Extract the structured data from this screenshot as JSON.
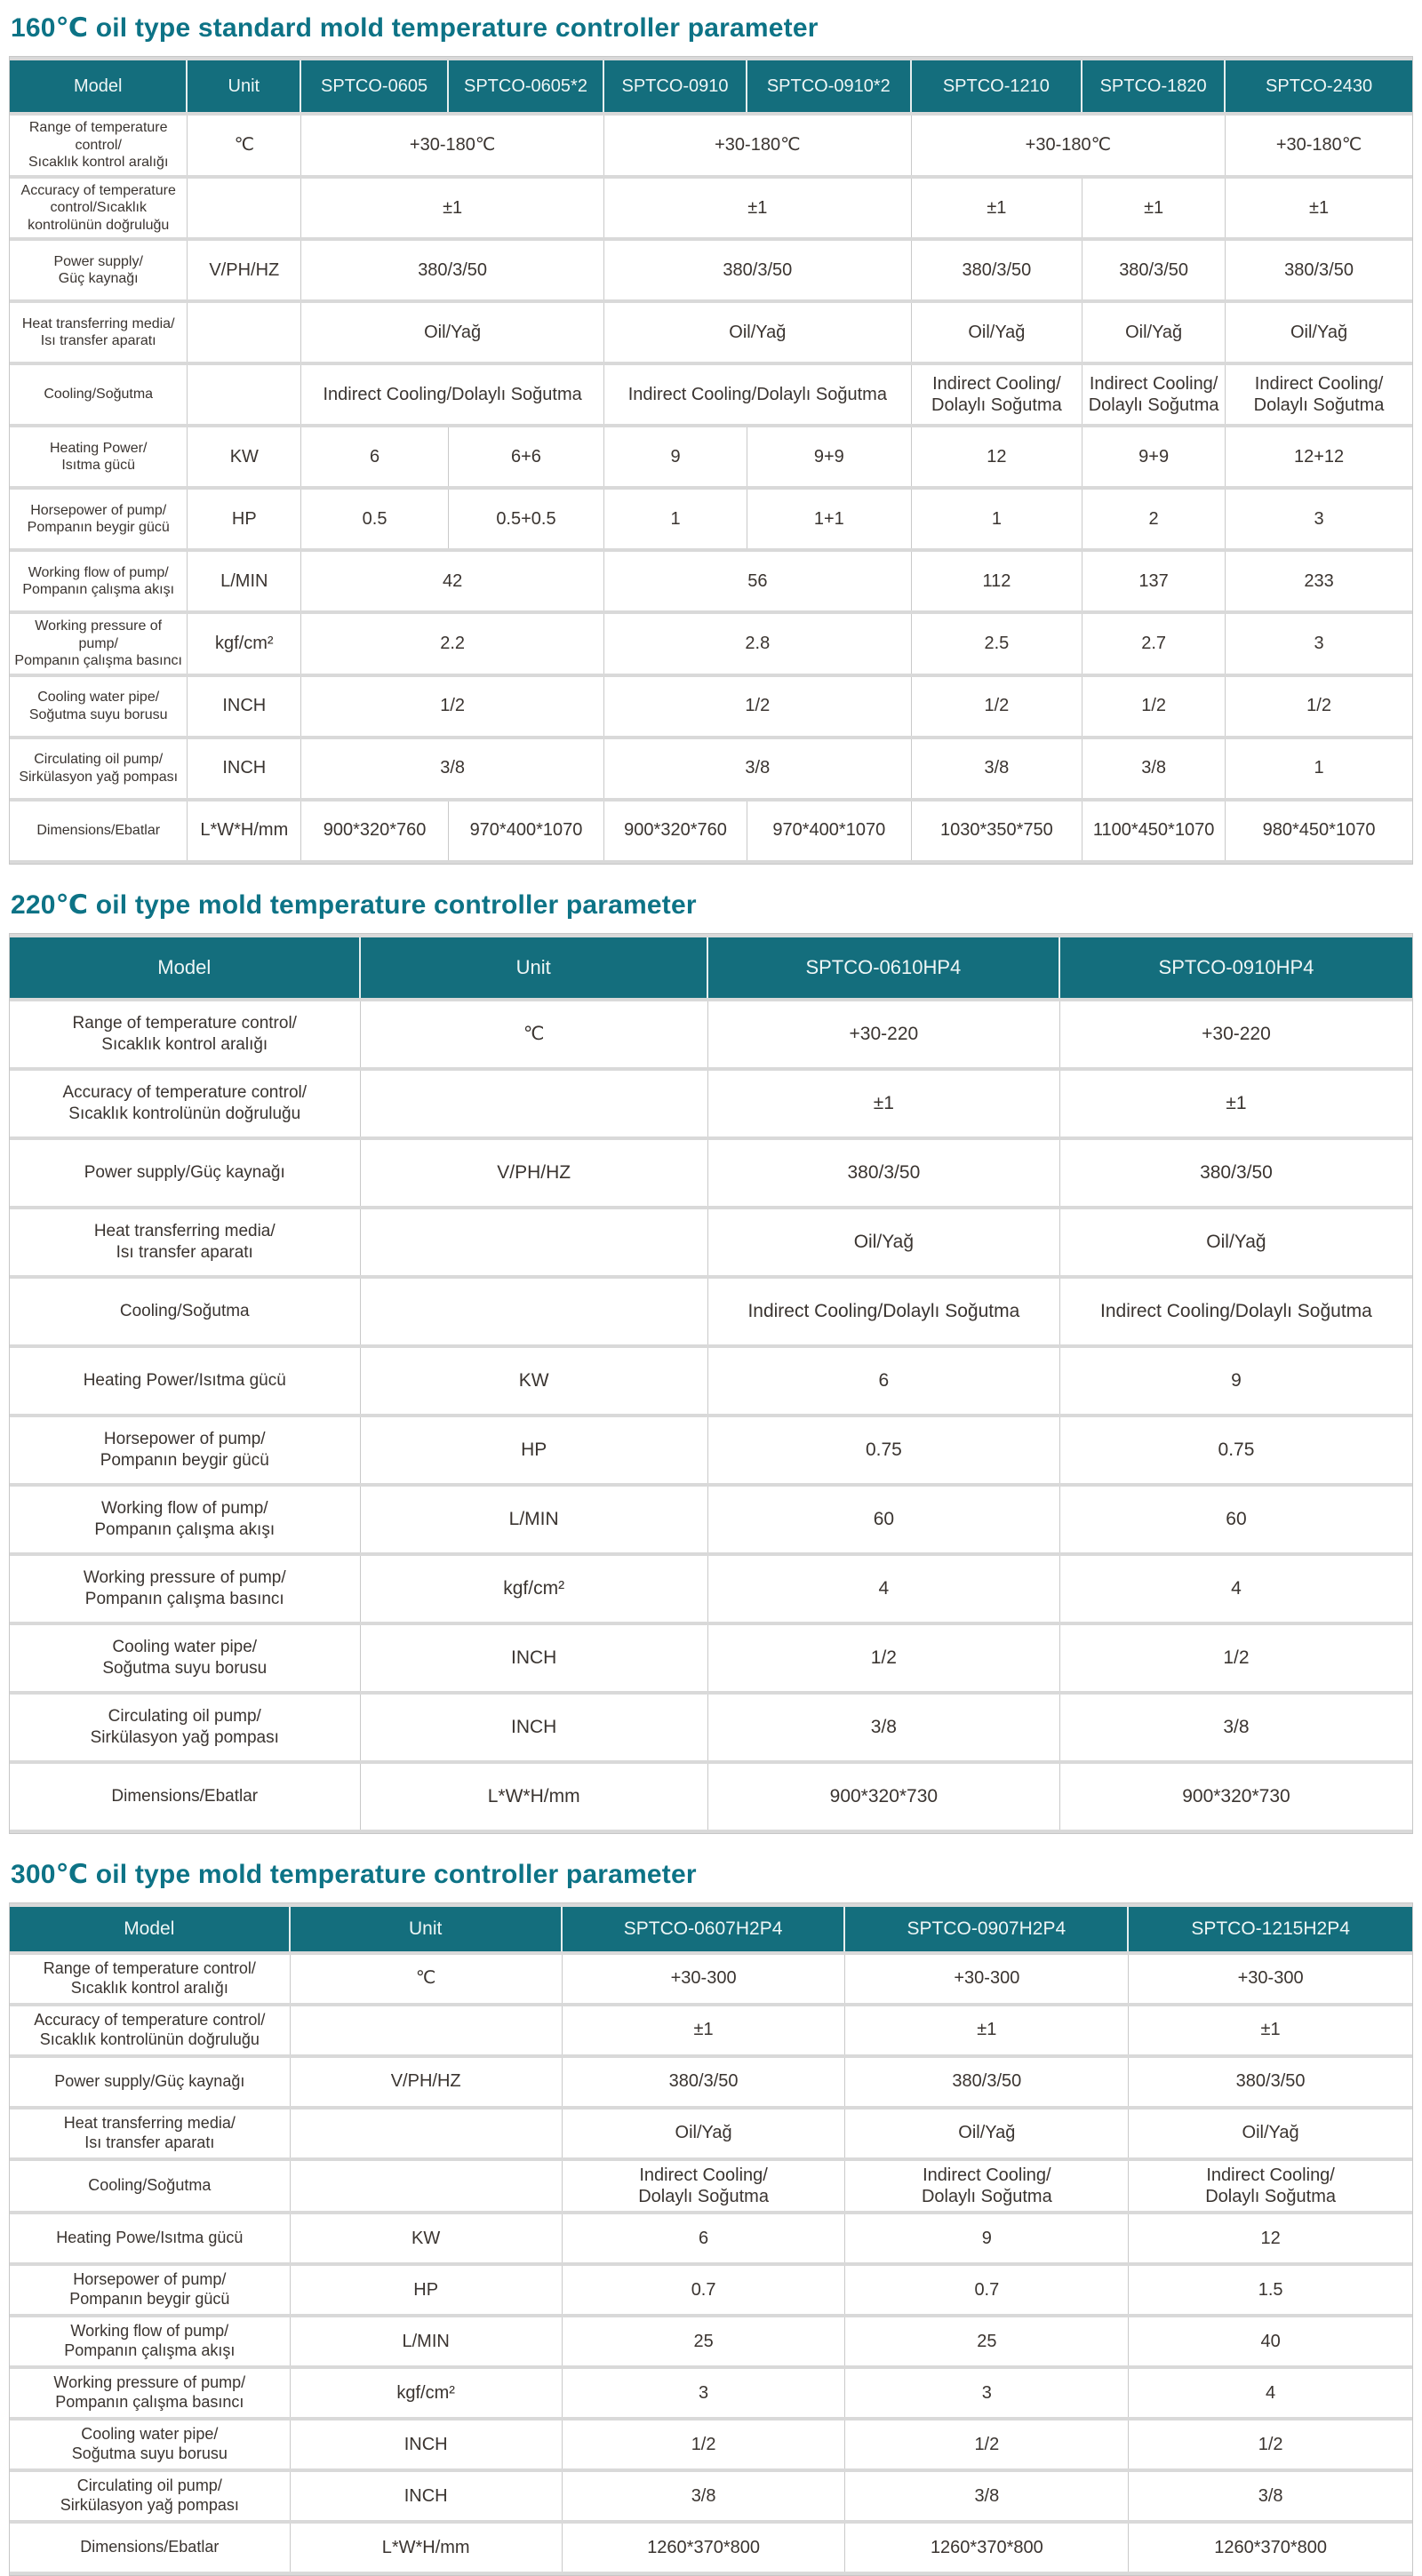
{
  "theme": {
    "header_bg": "#146e7d",
    "header_text": "#eef6f6",
    "title_color": "#0d7386",
    "body_text": "#3a3430",
    "grid_line": "#c9c9c9",
    "row_band": "#d9d9d9"
  },
  "tables": [
    {
      "title": "160℃ oil type standard mold temperature controller parameter",
      "header": [
        "Model",
        "Unit",
        "SPTCO-0605",
        "SPTCO-0605*2",
        "SPTCO-0910",
        "SPTCO-0910*2",
        "SPTCO-1210",
        "SPTCO-1820",
        "SPTCO-2430"
      ],
      "rows": [
        {
          "label": [
            "Range of temperature",
            "control/",
            "Sıcaklık kontrol aralığı"
          ],
          "unit": "℃",
          "values": [
            {
              "text": "+30-180℃",
              "span": 2
            },
            {
              "text": "+30-180℃",
              "span": 2
            },
            {
              "text": "+30-180℃",
              "span": 2
            },
            {
              "text": "+30-180℃",
              "span": 1
            }
          ]
        },
        {
          "label": [
            "Accuracy of temperature",
            "control/Sıcaklık",
            "kontrolünün doğruluğu"
          ],
          "unit": "",
          "values": [
            {
              "text": "±1",
              "span": 2
            },
            {
              "text": "±1",
              "span": 2
            },
            {
              "text": "±1",
              "span": 1
            },
            {
              "text": "±1",
              "span": 1
            },
            {
              "text": "±1",
              "span": 1
            }
          ]
        },
        {
          "label": [
            "Power supply/",
            "Güç kaynağı"
          ],
          "unit": "V/PH/HZ",
          "values": [
            {
              "text": "380/3/50",
              "span": 2
            },
            {
              "text": "380/3/50",
              "span": 2
            },
            {
              "text": "380/3/50",
              "span": 1
            },
            {
              "text": "380/3/50",
              "span": 1
            },
            {
              "text": "380/3/50",
              "span": 1
            }
          ]
        },
        {
          "label": [
            "Heat transferring media/",
            "Isı transfer aparatı"
          ],
          "unit": "",
          "values": [
            {
              "text": "Oil/Yağ",
              "span": 2
            },
            {
              "text": "Oil/Yağ",
              "span": 2
            },
            {
              "text": "Oil/Yağ",
              "span": 1
            },
            {
              "text": "Oil/Yağ",
              "span": 1
            },
            {
              "text": "Oil/Yağ",
              "span": 1
            }
          ]
        },
        {
          "label": [
            "Cooling/Soğutma"
          ],
          "unit": "",
          "values": [
            {
              "text": "Indirect Cooling/Dolaylı Soğutma",
              "span": 2
            },
            {
              "text": "Indirect Cooling/Dolaylı Soğutma",
              "span": 2
            },
            {
              "text": [
                "Indirect Cooling/",
                "Dolaylı Soğutma"
              ],
              "span": 1
            },
            {
              "text": [
                "Indirect Cooling/",
                "Dolaylı Soğutma"
              ],
              "span": 1
            },
            {
              "text": [
                "Indirect Cooling/",
                "Dolaylı Soğutma"
              ],
              "span": 1
            }
          ]
        },
        {
          "label": [
            "Heating Power/",
            "Isıtma gücü"
          ],
          "unit": "KW",
          "values": [
            {
              "text": "6",
              "span": 1
            },
            {
              "text": "6+6",
              "span": 1
            },
            {
              "text": "9",
              "span": 1
            },
            {
              "text": "9+9",
              "span": 1
            },
            {
              "text": "12",
              "span": 1
            },
            {
              "text": "9+9",
              "span": 1
            },
            {
              "text": "12+12",
              "span": 1
            }
          ]
        },
        {
          "label": [
            "Horsepower of pump/",
            "Pompanın beygir gücü"
          ],
          "unit": "HP",
          "values": [
            {
              "text": "0.5",
              "span": 1
            },
            {
              "text": "0.5+0.5",
              "span": 1
            },
            {
              "text": "1",
              "span": 1
            },
            {
              "text": "1+1",
              "span": 1
            },
            {
              "text": "1",
              "span": 1
            },
            {
              "text": "2",
              "span": 1
            },
            {
              "text": "3",
              "span": 1
            }
          ]
        },
        {
          "label": [
            "Working flow of pump/",
            "Pompanın çalışma akışı"
          ],
          "unit": "L/MIN",
          "values": [
            {
              "text": "42",
              "span": 2
            },
            {
              "text": "56",
              "span": 2
            },
            {
              "text": "112",
              "span": 1
            },
            {
              "text": "137",
              "span": 1
            },
            {
              "text": "233",
              "span": 1
            }
          ]
        },
        {
          "label": [
            "Working pressure of pump/",
            "Pompanın çalışma basıncı"
          ],
          "unit": "kgf/cm²",
          "values": [
            {
              "text": "2.2",
              "span": 2
            },
            {
              "text": "2.8",
              "span": 2
            },
            {
              "text": "2.5",
              "span": 1
            },
            {
              "text": "2.7",
              "span": 1
            },
            {
              "text": "3",
              "span": 1
            }
          ]
        },
        {
          "label": [
            "Cooling water pipe/",
            "Soğutma suyu borusu"
          ],
          "unit": "INCH",
          "values": [
            {
              "text": "1/2",
              "span": 2
            },
            {
              "text": "1/2",
              "span": 2
            },
            {
              "text": "1/2",
              "span": 1
            },
            {
              "text": "1/2",
              "span": 1
            },
            {
              "text": "1/2",
              "span": 1
            }
          ]
        },
        {
          "label": [
            "Circulating oil pump/",
            "Sirkülasyon yağ pompası"
          ],
          "unit": "INCH",
          "values": [
            {
              "text": "3/8",
              "span": 2
            },
            {
              "text": "3/8",
              "span": 2
            },
            {
              "text": "3/8",
              "span": 1
            },
            {
              "text": "3/8",
              "span": 1
            },
            {
              "text": "1",
              "span": 1
            }
          ]
        },
        {
          "label": [
            "Dimensions/Ebatlar"
          ],
          "unit": "L*W*H/mm",
          "values": [
            {
              "text": "900*320*760",
              "span": 1
            },
            {
              "text": "970*400*1070",
              "span": 1
            },
            {
              "text": "900*320*760",
              "span": 1
            },
            {
              "text": "970*400*1070",
              "span": 1
            },
            {
              "text": "1030*350*750",
              "span": 1
            },
            {
              "text": "1100*450*1070",
              "span": 1
            },
            {
              "text": "980*450*1070",
              "span": 1
            }
          ]
        }
      ]
    },
    {
      "title": "220℃ oil type mold temperature controller parameter",
      "header": [
        "Model",
        "Unit",
        "SPTCO-0610HP4",
        "SPTCO-0910HP4"
      ],
      "rows": [
        {
          "label": [
            "Range of temperature control/",
            "Sıcaklık kontrol aralığı"
          ],
          "unit": "℃",
          "values": [
            {
              "text": "+30-220",
              "span": 1
            },
            {
              "text": "+30-220",
              "span": 1
            }
          ]
        },
        {
          "label": [
            "Accuracy of temperature control/",
            "Sıcaklık kontrolünün doğruluğu"
          ],
          "unit": "",
          "values": [
            {
              "text": "±1",
              "span": 1
            },
            {
              "text": "±1",
              "span": 1
            }
          ]
        },
        {
          "label": [
            "Power supply/Güç kaynağı"
          ],
          "unit": "V/PH/HZ",
          "values": [
            {
              "text": "380/3/50",
              "span": 1
            },
            {
              "text": "380/3/50",
              "span": 1
            }
          ]
        },
        {
          "label": [
            "Heat transferring media/",
            "Isı transfer aparatı"
          ],
          "unit": "",
          "values": [
            {
              "text": "Oil/Yağ",
              "span": 1
            },
            {
              "text": "Oil/Yağ",
              "span": 1
            }
          ]
        },
        {
          "label": [
            "Cooling/Soğutma"
          ],
          "unit": "",
          "values": [
            {
              "text": "Indirect Cooling/Dolaylı Soğutma",
              "span": 1
            },
            {
              "text": "Indirect Cooling/Dolaylı Soğutma",
              "span": 1
            }
          ]
        },
        {
          "label": [
            "Heating Power/Isıtma gücü"
          ],
          "unit": "KW",
          "values": [
            {
              "text": "6",
              "span": 1
            },
            {
              "text": "9",
              "span": 1
            }
          ]
        },
        {
          "label": [
            "Horsepower of pump/",
            "Pompanın beygir gücü"
          ],
          "unit": "HP",
          "values": [
            {
              "text": "0.75",
              "span": 1
            },
            {
              "text": "0.75",
              "span": 1
            }
          ]
        },
        {
          "label": [
            "Working flow of pump/",
            "Pompanın çalışma akışı"
          ],
          "unit": "L/MIN",
          "values": [
            {
              "text": "60",
              "span": 1
            },
            {
              "text": "60",
              "span": 1
            }
          ]
        },
        {
          "label": [
            "Working pressure of pump/",
            "Pompanın çalışma basıncı"
          ],
          "unit": "kgf/cm²",
          "values": [
            {
              "text": "4",
              "span": 1
            },
            {
              "text": "4",
              "span": 1
            }
          ]
        },
        {
          "label": [
            "Cooling water pipe/",
            "Soğutma suyu borusu"
          ],
          "unit": "INCH",
          "values": [
            {
              "text": "1/2",
              "span": 1
            },
            {
              "text": "1/2",
              "span": 1
            }
          ]
        },
        {
          "label": [
            "Circulating oil pump/",
            "Sirkülasyon yağ pompası"
          ],
          "unit": "INCH",
          "values": [
            {
              "text": "3/8",
              "span": 1
            },
            {
              "text": "3/8",
              "span": 1
            }
          ]
        },
        {
          "label": [
            "Dimensions/Ebatlar"
          ],
          "unit": "L*W*H/mm",
          "values": [
            {
              "text": "900*320*730",
              "span": 1
            },
            {
              "text": "900*320*730",
              "span": 1
            }
          ]
        }
      ]
    },
    {
      "title": "300℃ oil type mold temperature controller parameter",
      "header": [
        "Model",
        "Unit",
        "SPTCO-0607H2P4",
        "SPTCO-0907H2P4",
        "SPTCO-1215H2P4"
      ],
      "rows": [
        {
          "label": [
            "Range of temperature control/",
            "Sıcaklık kontrol aralığı"
          ],
          "unit": "℃",
          "values": [
            {
              "text": "+30-300",
              "span": 1
            },
            {
              "text": "+30-300",
              "span": 1
            },
            {
              "text": "+30-300",
              "span": 1
            }
          ]
        },
        {
          "label": [
            "Accuracy of temperature control/",
            "Sıcaklık kontrolünün doğruluğu"
          ],
          "unit": "",
          "values": [
            {
              "text": "±1",
              "span": 1
            },
            {
              "text": "±1",
              "span": 1
            },
            {
              "text": "±1",
              "span": 1
            }
          ]
        },
        {
          "label": [
            "Power supply/Güç kaynağı"
          ],
          "unit": "V/PH/HZ",
          "values": [
            {
              "text": "380/3/50",
              "span": 1
            },
            {
              "text": "380/3/50",
              "span": 1
            },
            {
              "text": "380/3/50",
              "span": 1
            }
          ]
        },
        {
          "label": [
            "Heat transferring media/",
            "Isı transfer aparatı"
          ],
          "unit": "",
          "values": [
            {
              "text": "Oil/Yağ",
              "span": 1
            },
            {
              "text": "Oil/Yağ",
              "span": 1
            },
            {
              "text": "Oil/Yağ",
              "span": 1
            }
          ]
        },
        {
          "label": [
            "Cooling/Soğutma"
          ],
          "unit": "",
          "values": [
            {
              "text": [
                "Indirect Cooling/",
                "Dolaylı Soğutma"
              ],
              "span": 1
            },
            {
              "text": [
                "Indirect Cooling/",
                "Dolaylı Soğutma"
              ],
              "span": 1
            },
            {
              "text": [
                "Indirect Cooling/",
                "Dolaylı Soğutma"
              ],
              "span": 1
            }
          ]
        },
        {
          "label": [
            "Heating Powe/Isıtma gücü"
          ],
          "unit": "KW",
          "values": [
            {
              "text": "6",
              "span": 1
            },
            {
              "text": "9",
              "span": 1
            },
            {
              "text": "12",
              "span": 1
            }
          ]
        },
        {
          "label": [
            "Horsepower of pump/",
            "Pompanın beygir gücü"
          ],
          "unit": "HP",
          "values": [
            {
              "text": "0.7",
              "span": 1
            },
            {
              "text": "0.7",
              "span": 1
            },
            {
              "text": "1.5",
              "span": 1
            }
          ]
        },
        {
          "label": [
            "Working flow of pump/",
            "Pompanın çalışma akışı"
          ],
          "unit": "L/MIN",
          "values": [
            {
              "text": "25",
              "span": 1
            },
            {
              "text": "25",
              "span": 1
            },
            {
              "text": "40",
              "span": 1
            }
          ]
        },
        {
          "label": [
            "Working pressure of pump/",
            "Pompanın çalışma basıncı"
          ],
          "unit": "kgf/cm²",
          "values": [
            {
              "text": "3",
              "span": 1
            },
            {
              "text": "3",
              "span": 1
            },
            {
              "text": "4",
              "span": 1
            }
          ]
        },
        {
          "label": [
            "Cooling water pipe/",
            "Soğutma suyu borusu"
          ],
          "unit": "INCH",
          "values": [
            {
              "text": "1/2",
              "span": 1
            },
            {
              "text": "1/2",
              "span": 1
            },
            {
              "text": "1/2",
              "span": 1
            }
          ]
        },
        {
          "label": [
            "Circulating oil pump/",
            "Sirkülasyon yağ pompası"
          ],
          "unit": "INCH",
          "values": [
            {
              "text": "3/8",
              "span": 1
            },
            {
              "text": "3/8",
              "span": 1
            },
            {
              "text": "3/8",
              "span": 1
            }
          ]
        },
        {
          "label": [
            "Dimensions/Ebatlar"
          ],
          "unit": "L*W*H/mm",
          "values": [
            {
              "text": "1260*370*800",
              "span": 1
            },
            {
              "text": "1260*370*800",
              "span": 1
            },
            {
              "text": "1260*370*800",
              "span": 1
            }
          ]
        }
      ]
    }
  ]
}
